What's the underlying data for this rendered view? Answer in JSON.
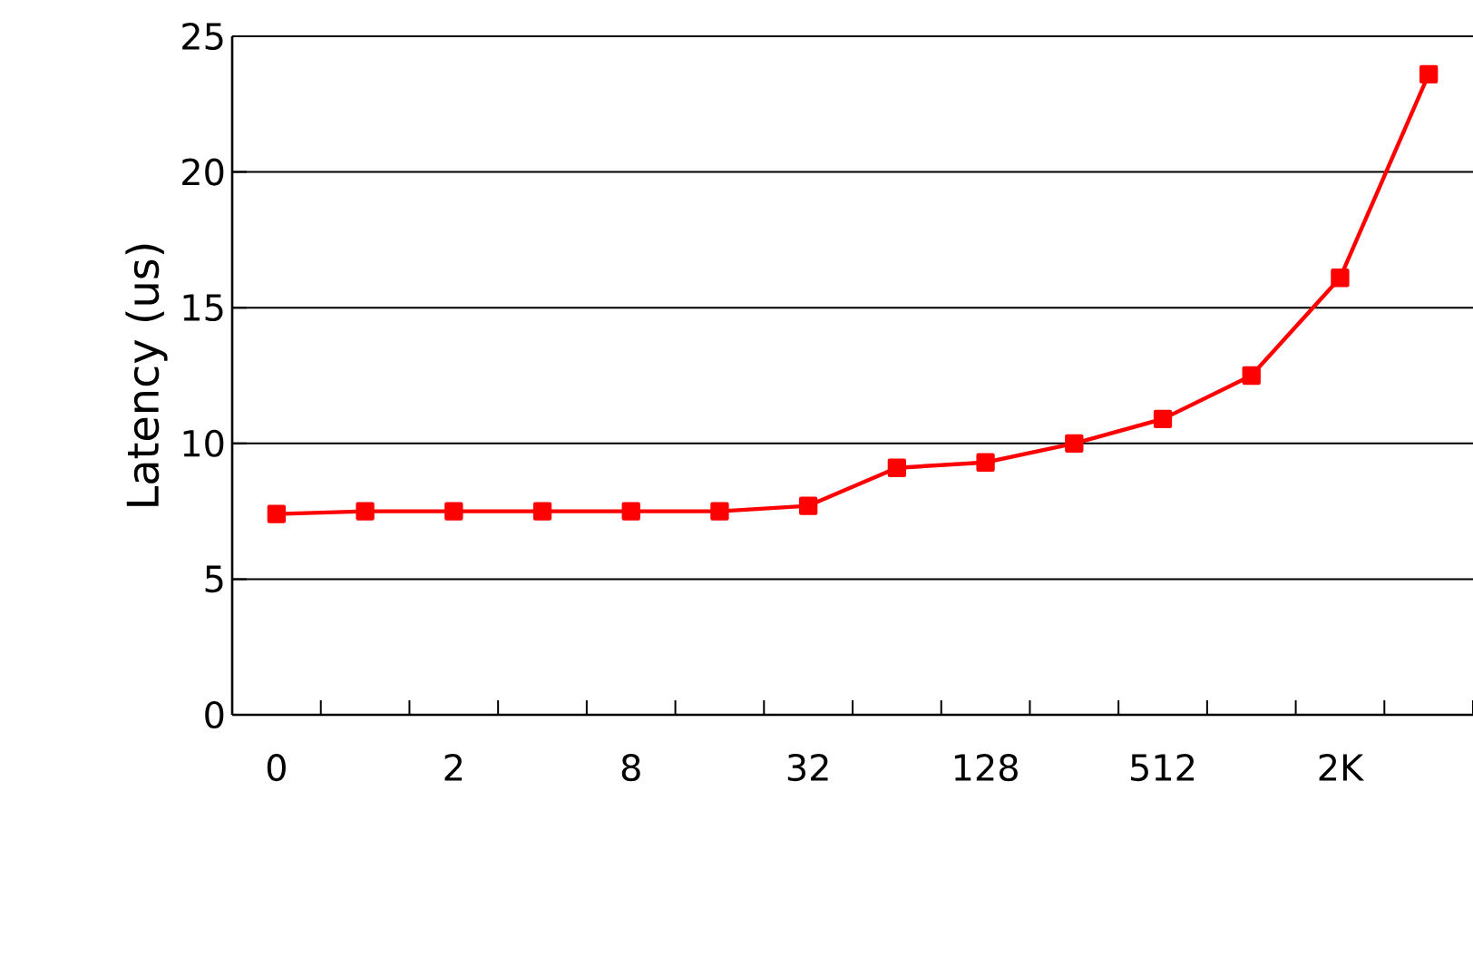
{
  "chart_data": {
    "type": "line",
    "ylabel": "Latency (us)",
    "categories": [
      "0",
      null,
      "2",
      null,
      "8",
      null,
      "32",
      null,
      "128",
      null,
      "512",
      null,
      "2K",
      null
    ],
    "series": [
      {
        "color": "#ff0000",
        "values": [
          7.4,
          7.5,
          7.5,
          7.5,
          7.5,
          7.5,
          7.7,
          9.1,
          9.3,
          10.0,
          10.9,
          12.5,
          16.1,
          23.6
        ]
      }
    ],
    "ylim": [
      0,
      25
    ],
    "yticks": [
      0,
      5,
      10,
      15,
      20,
      25
    ],
    "grid": "y",
    "marker": "square",
    "line_style": "solid"
  }
}
